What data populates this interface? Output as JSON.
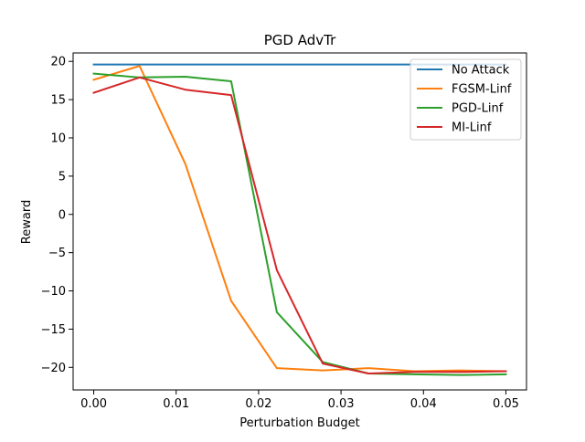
{
  "chart_data": {
    "type": "line",
    "title": "PGD AdvTr",
    "xlabel": "Perturbation Budget",
    "ylabel": "Reward",
    "xlim": [
      -0.0025,
      0.0025
    ],
    "ylim": [
      -22.95,
      21.1
    ],
    "xticks": [
      0.0,
      0.01,
      0.02,
      0.03,
      0.04,
      0.05
    ],
    "xtick_labels": [
      "0.00",
      "0.01",
      "0.02",
      "0.03",
      "0.04",
      "0.05"
    ],
    "yticks": [
      20,
      15,
      10,
      5,
      0,
      -5,
      -10,
      -15,
      -20
    ],
    "ytick_labels": [
      "20",
      "15",
      "10",
      "5",
      "0",
      "−5",
      "−10",
      "−15",
      "−20"
    ],
    "grid": false,
    "legend_position": "top-right",
    "x": [
      0.0,
      0.00556,
      0.01111,
      0.01667,
      0.02222,
      0.02778,
      0.03333,
      0.03889,
      0.04444,
      0.05
    ],
    "series": [
      {
        "name": "No Attack",
        "color": "#1f77b4",
        "values": [
          19.6,
          19.6,
          19.6,
          19.6,
          19.6,
          19.6,
          19.6,
          19.6,
          19.6,
          19.6
        ]
      },
      {
        "name": "FGSM-Linf",
        "color": "#ff7f0e",
        "values": [
          17.6,
          19.4,
          6.6,
          -11.3,
          -20.1,
          -20.4,
          -20.1,
          -20.5,
          -20.4,
          -20.5
        ]
      },
      {
        "name": "PGD-Linf",
        "color": "#2ca02c",
        "values": [
          18.4,
          17.9,
          18.0,
          17.4,
          -12.8,
          -19.3,
          -20.8,
          -20.9,
          -21.0,
          -20.9
        ]
      },
      {
        "name": "MI-Linf",
        "color": "#d62728",
        "values": [
          15.9,
          17.9,
          16.3,
          15.6,
          -7.3,
          -19.5,
          -20.8,
          -20.6,
          -20.6,
          -20.5
        ]
      }
    ]
  }
}
